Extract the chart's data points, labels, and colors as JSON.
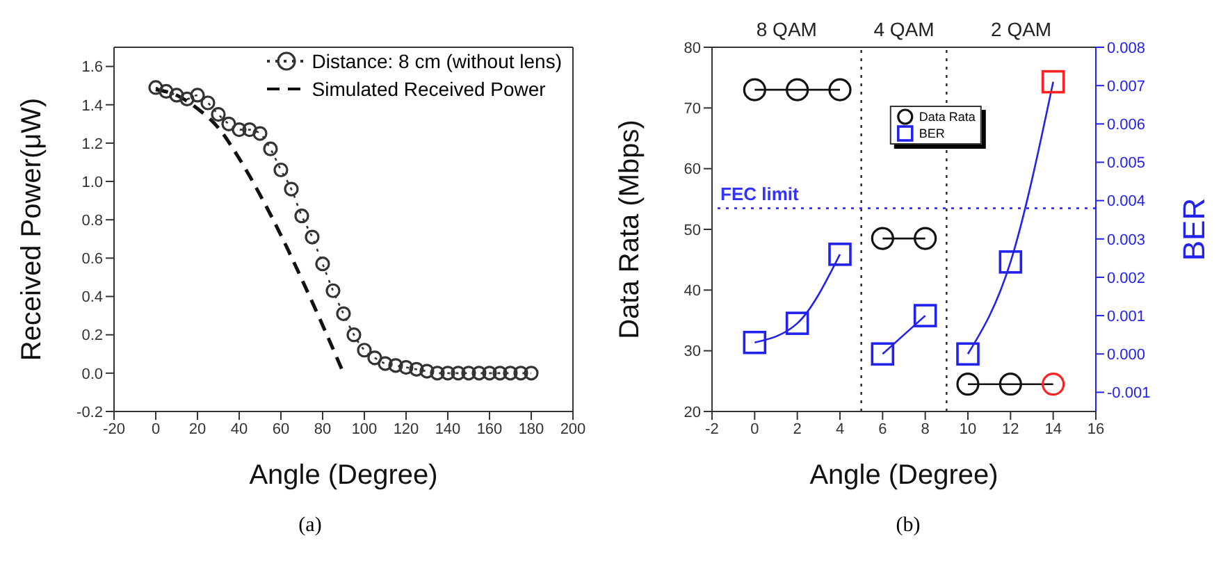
{
  "chart_data": [
    {
      "type": "line",
      "xlabel": "Angle (Degree)",
      "ylabel": "Received Power(μW)",
      "xlim": [
        -20,
        200
      ],
      "xticks": [
        -20,
        0,
        20,
        40,
        60,
        80,
        100,
        120,
        140,
        160,
        180,
        200
      ],
      "ylim": [
        -0.2,
        1.7
      ],
      "yticks": [
        {
          "value": -0.2,
          "label": "-0.2"
        },
        {
          "value": 0,
          "label": "0.0"
        },
        {
          "value": 0.2,
          "label": "0.2"
        },
        {
          "value": 0.4,
          "label": "0.4"
        },
        {
          "value": 0.6,
          "label": "0.6"
        },
        {
          "value": 0.8,
          "label": "0.8"
        },
        {
          "value": 1,
          "label": "1.0"
        },
        {
          "value": 1.2,
          "label": "1.2"
        },
        {
          "value": 1.4,
          "label": "1.4"
        },
        {
          "value": 1.6,
          "label": "1.6"
        }
      ],
      "legend": "top right",
      "annotations": [
        "(a)"
      ],
      "series": [
        {
          "name": "Distance: 8 cm (without lens)",
          "color": "#333333",
          "marker": "circle",
          "line_style": "dotted",
          "x": [
            0,
            5,
            10,
            15,
            20,
            25,
            30,
            35,
            40,
            45,
            50,
            55,
            60,
            65,
            70,
            75,
            80,
            85,
            90,
            95,
            100,
            105,
            110,
            115,
            120,
            125,
            130,
            135,
            140,
            145,
            150,
            155,
            160,
            165,
            170,
            175,
            180
          ],
          "values": [
            1.49,
            1.47,
            1.45,
            1.43,
            1.45,
            1.41,
            1.35,
            1.3,
            1.27,
            1.27,
            1.25,
            1.17,
            1.06,
            0.96,
            0.82,
            0.71,
            0.57,
            0.43,
            0.31,
            0.2,
            0.12,
            0.08,
            0.05,
            0.04,
            0.03,
            0.02,
            0.01,
            0,
            0,
            0,
            0,
            0,
            0,
            0,
            0,
            0,
            0
          ]
        },
        {
          "name": "Simulated Received Power",
          "color": "#111111",
          "marker": "none",
          "line_style": "dashed",
          "x": [
            0,
            10,
            20,
            30,
            40,
            50,
            60,
            70,
            80,
            90
          ],
          "values": [
            1.48,
            1.45,
            1.38,
            1.28,
            1.12,
            0.93,
            0.72,
            0.49,
            0.25,
            0
          ]
        }
      ]
    },
    {
      "type": "line",
      "xlabel": "Angle (Degree)",
      "ylabel": "Data Rata (Mbps)",
      "y2label": "BER",
      "xlim": [
        -2,
        16
      ],
      "xticks": [
        -2,
        0,
        2,
        4,
        6,
        8,
        10,
        12,
        14,
        16
      ],
      "ylim": [
        20,
        80
      ],
      "yticks": [
        20,
        30,
        40,
        50,
        60,
        70,
        80
      ],
      "y2lim": [
        -0.0015,
        0.008
      ],
      "y2ticks": [
        {
          "value": -0.001,
          "label": "-0.001"
        },
        {
          "value": 0,
          "label": "0.000"
        },
        {
          "value": 0.001,
          "label": "0.001"
        },
        {
          "value": 0.002,
          "label": "0.002"
        },
        {
          "value": 0.003,
          "label": "0.003"
        },
        {
          "value": 0.004,
          "label": "0.004"
        },
        {
          "value": 0.005,
          "label": "0.005"
        },
        {
          "value": 0.006,
          "label": "0.006"
        },
        {
          "value": 0.007,
          "label": "0.007"
        },
        {
          "value": 0.008,
          "label": "0.008"
        }
      ],
      "legend": "top",
      "ref_lines": [
        {
          "axis": "x",
          "value": 5,
          "label": null,
          "color": "#333333",
          "line_style": "dotted"
        },
        {
          "axis": "x",
          "value": 9,
          "label": null,
          "color": "#333333",
          "line_style": "dotted"
        },
        {
          "axis": "y2",
          "value": 0.0038,
          "label": "FEC limit",
          "color": "#3333ff",
          "line_style": "dotted"
        }
      ],
      "annotations": [
        "8 QAM",
        "4 QAM",
        "2 QAM",
        "(b)"
      ],
      "series": [
        {
          "name": "Data Rata",
          "color": "#111111",
          "marker": "circle",
          "line_style": "solid",
          "x": [
            0,
            2,
            4
          ],
          "values": [
            73,
            73,
            73
          ]
        },
        {
          "color": "#111111",
          "marker": "circle",
          "line_style": "solid",
          "x": [
            6,
            8
          ],
          "values": [
            48.5,
            48.5
          ]
        },
        {
          "color": "#111111",
          "colors": [
            "#111111",
            "#111111",
            "#ff2222"
          ],
          "marker": "circle",
          "line_style": "solid",
          "x": [
            10,
            12,
            14
          ],
          "values": [
            24.5,
            24.5,
            24.5
          ]
        },
        {
          "name": "BER",
          "color": "#2222ee",
          "marker": "square",
          "line_style": "solid",
          "axis": "y2",
          "x": [
            0,
            2,
            4
          ],
          "values": [
            0.0003,
            0.0008,
            0.0026
          ]
        },
        {
          "color": "#2222ee",
          "marker": "square",
          "line_style": "solid",
          "axis": "y2",
          "x": [
            6,
            8
          ],
          "values": [
            0,
            0.001
          ]
        },
        {
          "color": "#2222ee",
          "colors": [
            "#2222ee",
            "#2222ee",
            "#ff2222"
          ],
          "marker": "square",
          "line_style": "solid",
          "axis": "y2",
          "x": [
            10,
            12,
            14
          ],
          "values": [
            0,
            0.0024,
            0.0071
          ]
        }
      ]
    }
  ]
}
